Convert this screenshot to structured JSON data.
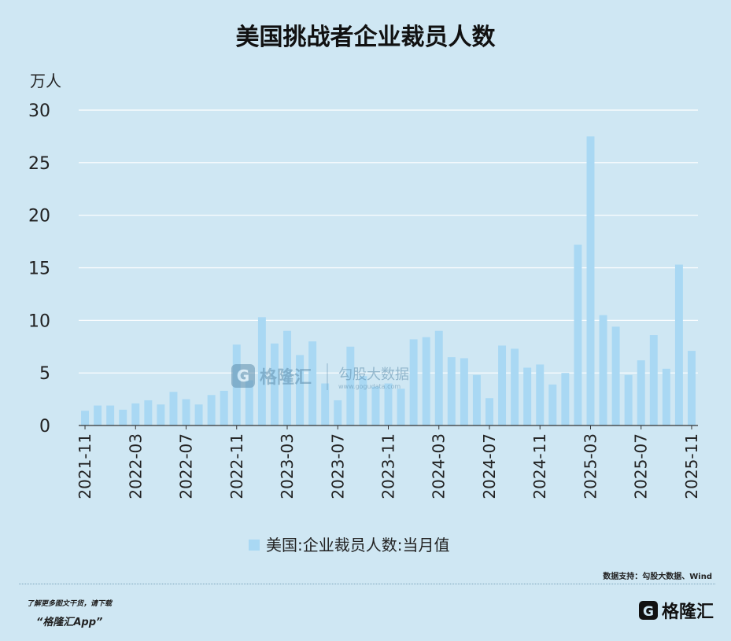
{
  "title": "美国挑战者企业裁员人数",
  "chart_data": {
    "type": "bar",
    "title": "美国挑战者企业裁员人数",
    "ylabel": "万人",
    "ylim": [
      0,
      30
    ],
    "yticks": [
      0,
      5,
      10,
      15,
      20,
      25,
      30
    ],
    "grid": true,
    "legend_position": "bottom",
    "bar_color": "#a9d8f3",
    "categories": [
      "2021-11",
      "2021-12",
      "2022-01",
      "2022-02",
      "2022-03",
      "2022-04",
      "2022-05",
      "2022-06",
      "2022-07",
      "2022-08",
      "2022-09",
      "2022-10",
      "2022-11",
      "2022-12",
      "2023-01",
      "2023-02",
      "2023-03",
      "2023-04",
      "2023-05",
      "2023-06",
      "2023-07",
      "2023-08",
      "2023-09",
      "2023-10",
      "2023-11",
      "2023-12",
      "2024-01",
      "2024-02",
      "2024-03",
      "2024-04",
      "2024-05",
      "2024-06",
      "2024-07",
      "2024-08",
      "2024-09",
      "2024-10",
      "2024-11",
      "2024-12",
      "2025-01",
      "2025-02",
      "2025-03",
      "2025-04",
      "2025-05",
      "2025-06",
      "2025-07",
      "2025-08",
      "2025-09",
      "2025-10",
      "2025-11"
    ],
    "tick_labels": [
      "2021-11",
      "2022-03",
      "2022-07",
      "2022-11",
      "2023-03",
      "2023-07",
      "2023-11",
      "2024-03",
      "2024-07",
      "2024-11",
      "2025-03",
      "2025-07",
      "2025-11"
    ],
    "series": [
      {
        "name": "美国:企业裁员人数:当月值",
        "values": [
          1.4,
          1.9,
          1.9,
          1.5,
          2.1,
          2.4,
          2.0,
          3.2,
          2.5,
          2.0,
          2.9,
          3.3,
          7.7,
          4.3,
          10.3,
          7.8,
          9.0,
          6.7,
          8.0,
          4.0,
          2.4,
          7.5,
          4.7,
          3.7,
          4.0,
          3.5,
          8.2,
          8.4,
          9.0,
          6.5,
          6.4,
          4.8,
          2.6,
          7.6,
          7.3,
          5.5,
          5.8,
          3.9,
          5.0,
          17.2,
          27.5,
          10.5,
          9.4,
          4.8,
          6.2,
          8.6,
          5.4,
          15.3,
          7.1
        ]
      }
    ]
  },
  "watermark": {
    "brand": "格隆汇",
    "partner": "勾股大数据",
    "partner_url_text": "www.gogudata.com"
  },
  "footer": {
    "source": "数据支持：勾股大数据、Wind",
    "promo_line1": "了解更多图文干货，请下载",
    "promo_line2": "“格隆汇App”",
    "brand": "格隆汇"
  },
  "colors": {
    "background": "#cfe7f3",
    "bar": "#a9d8f3",
    "grid": "#ffffff",
    "axis": "#333333"
  }
}
